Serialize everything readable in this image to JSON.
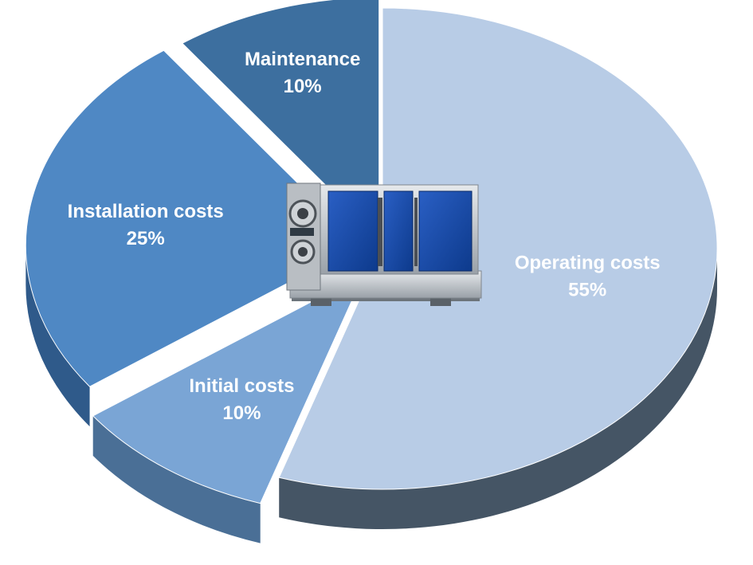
{
  "chart_data": {
    "type": "pie",
    "title": "",
    "slices": [
      {
        "label": "Operating costs",
        "value": 55,
        "value_label": "55%",
        "color": "#b8cce6",
        "side_color": "#455565"
      },
      {
        "label": "Initial costs",
        "value": 10,
        "value_label": "10%",
        "color": "#7aa5d5",
        "side_color": "#4a6f96"
      },
      {
        "label": "Installation costs",
        "value": 25,
        "value_label": "25%",
        "color": "#4f88c4",
        "side_color": "#2f5a8a"
      },
      {
        "label": "Maintenance",
        "value": 10,
        "value_label": "10%",
        "color": "#3d6f9f",
        "side_color": "#274c70"
      }
    ],
    "style": "3d-exploded",
    "legend": "none",
    "center_image": "pump-unit"
  }
}
